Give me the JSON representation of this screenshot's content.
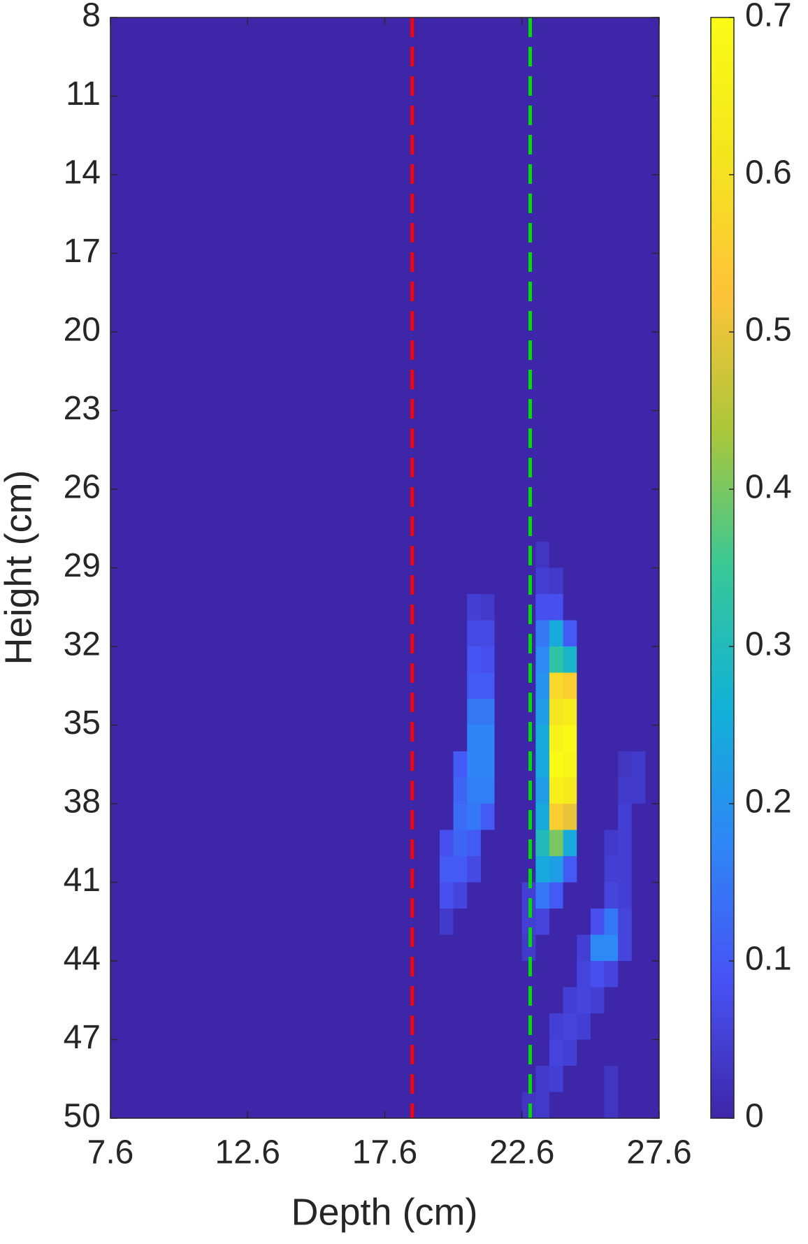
{
  "chart_data": {
    "type": "heatmap",
    "xlabel": "Depth (cm)",
    "ylabel": "Height (cm)",
    "xlim": [
      7.6,
      27.6
    ],
    "xticks": [
      7.6,
      12.6,
      17.6,
      22.6,
      27.6
    ],
    "ylim": [
      8,
      50
    ],
    "yticks": [
      8,
      11,
      14,
      17,
      20,
      23,
      26,
      29,
      32,
      35,
      38,
      41,
      44,
      47,
      50
    ],
    "y_reversed": true,
    "colormap": "parula",
    "clim": [
      0,
      0.7
    ],
    "cticks": [
      0,
      0.1,
      0.2,
      0.3,
      0.4,
      0.5,
      0.6,
      0.7
    ],
    "x_edges": [
      7.6,
      19.6,
      20.1,
      20.6,
      21.1,
      21.6,
      22.1,
      22.6,
      23.1,
      23.6,
      24.1,
      24.6,
      25.1,
      25.6,
      26.1,
      26.6,
      27.1,
      27.6
    ],
    "y_edges": [
      8,
      28,
      29,
      30,
      31,
      32,
      33,
      34,
      35,
      36,
      37,
      38,
      39,
      40,
      41,
      42,
      43,
      44,
      45,
      46,
      47,
      48,
      49,
      50
    ],
    "z": [
      [
        0,
        0,
        0,
        0,
        0,
        0,
        0,
        0,
        0,
        0,
        0,
        0,
        0,
        0,
        0,
        0,
        0
      ],
      [
        0,
        0,
        0,
        0,
        0,
        0,
        0,
        0,
        0.03,
        0,
        0,
        0,
        0,
        0,
        0,
        0,
        0
      ],
      [
        0,
        0,
        0,
        0,
        0,
        0,
        0,
        0,
        0.05,
        0.04,
        0,
        0,
        0,
        0,
        0,
        0,
        0
      ],
      [
        0,
        0,
        0,
        0.05,
        0.04,
        0,
        0,
        0,
        0.08,
        0.08,
        0,
        0,
        0,
        0,
        0,
        0,
        0
      ],
      [
        0,
        0,
        0,
        0.07,
        0.07,
        0,
        0,
        0,
        0.15,
        0.25,
        0.1,
        0,
        0,
        0,
        0,
        0,
        0
      ],
      [
        0,
        0,
        0,
        0.09,
        0.08,
        0,
        0,
        0,
        0.18,
        0.33,
        0.28,
        0,
        0,
        0,
        0,
        0,
        0
      ],
      [
        0,
        0,
        0,
        0.1,
        0.1,
        0,
        0,
        0,
        0.2,
        0.58,
        0.55,
        0,
        0,
        0,
        0,
        0,
        0
      ],
      [
        0,
        0,
        0,
        0.15,
        0.15,
        0,
        0,
        0,
        0.22,
        0.62,
        0.64,
        0,
        0,
        0,
        0,
        0,
        0
      ],
      [
        0,
        0,
        0,
        0.17,
        0.17,
        0,
        0,
        0,
        0.25,
        0.67,
        0.69,
        0,
        0,
        0,
        0,
        0,
        0
      ],
      [
        0,
        0,
        0.1,
        0.17,
        0.17,
        0,
        0,
        0,
        0.25,
        0.7,
        0.68,
        0,
        0,
        0,
        0.03,
        0.04,
        0
      ],
      [
        0,
        0,
        0.12,
        0.16,
        0.16,
        0,
        0,
        0,
        0.22,
        0.65,
        0.63,
        0,
        0,
        0,
        0.04,
        0.04,
        0
      ],
      [
        0,
        0,
        0.13,
        0.15,
        0.1,
        0,
        0,
        0,
        0.25,
        0.55,
        0.5,
        0,
        0,
        0,
        0.05,
        0,
        0
      ],
      [
        0,
        0.08,
        0.12,
        0.1,
        0,
        0,
        0,
        0,
        0.3,
        0.4,
        0.25,
        0,
        0,
        0.04,
        0.05,
        0,
        0
      ],
      [
        0,
        0.1,
        0.1,
        0.07,
        0,
        0,
        0,
        0,
        0.25,
        0.22,
        0.1,
        0,
        0,
        0.05,
        0.05,
        0,
        0
      ],
      [
        0,
        0.08,
        0.06,
        0,
        0,
        0,
        0,
        0.05,
        0.15,
        0.1,
        0,
        0,
        0,
        0.06,
        0.05,
        0,
        0
      ],
      [
        0,
        0.04,
        0,
        0,
        0,
        0,
        0,
        0.05,
        0.06,
        0,
        0,
        0,
        0.08,
        0.15,
        0.06,
        0,
        0
      ],
      [
        0,
        0,
        0,
        0,
        0,
        0,
        0,
        0.04,
        0,
        0,
        0,
        0.05,
        0.18,
        0.18,
        0.06,
        0,
        0
      ],
      [
        0,
        0,
        0,
        0,
        0,
        0,
        0,
        0,
        0,
        0,
        0,
        0.06,
        0.08,
        0.06,
        0,
        0,
        0
      ],
      [
        0,
        0,
        0,
        0,
        0,
        0,
        0,
        0,
        0,
        0,
        0.05,
        0.06,
        0.05,
        0,
        0,
        0,
        0
      ],
      [
        0,
        0,
        0,
        0,
        0,
        0,
        0,
        0,
        0,
        0.05,
        0.06,
        0.05,
        0,
        0,
        0,
        0,
        0
      ],
      [
        0,
        0,
        0,
        0,
        0,
        0,
        0,
        0,
        0,
        0.06,
        0.05,
        0,
        0,
        0,
        0,
        0,
        0
      ],
      [
        0,
        0,
        0,
        0,
        0,
        0,
        0,
        0,
        0.04,
        0.05,
        0,
        0,
        0,
        0.03,
        0,
        0,
        0
      ],
      [
        0,
        0,
        0,
        0,
        0,
        0,
        0,
        0.03,
        0.04,
        0,
        0,
        0,
        0,
        0.03,
        0,
        0,
        0
      ]
    ],
    "lines": [
      {
        "x": 18.6,
        "color": "#ff0000"
      },
      {
        "x": 22.9,
        "color": "#00dd00"
      }
    ]
  }
}
